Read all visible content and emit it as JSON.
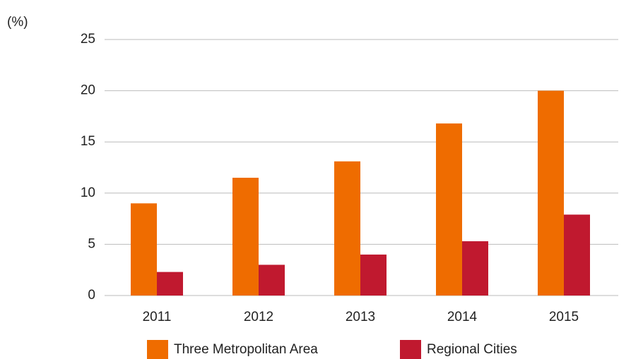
{
  "chart_data": {
    "type": "bar",
    "y_axis_label": "(%)",
    "categories": [
      "2011",
      "2012",
      "2013",
      "2014",
      "2015"
    ],
    "series": [
      {
        "name": "Three Metropolitan Area",
        "color": "#ef6c00",
        "values": [
          9.0,
          11.5,
          13.1,
          16.8,
          20.0
        ]
      },
      {
        "name": "Regional Cities",
        "color": "#c0192f",
        "values": [
          2.3,
          3.0,
          4.0,
          5.3,
          7.9
        ]
      }
    ],
    "ylim": [
      0,
      25
    ],
    "yticks": [
      0,
      5,
      10,
      15,
      20,
      25
    ],
    "grid": true,
    "legend": "bottom"
  }
}
